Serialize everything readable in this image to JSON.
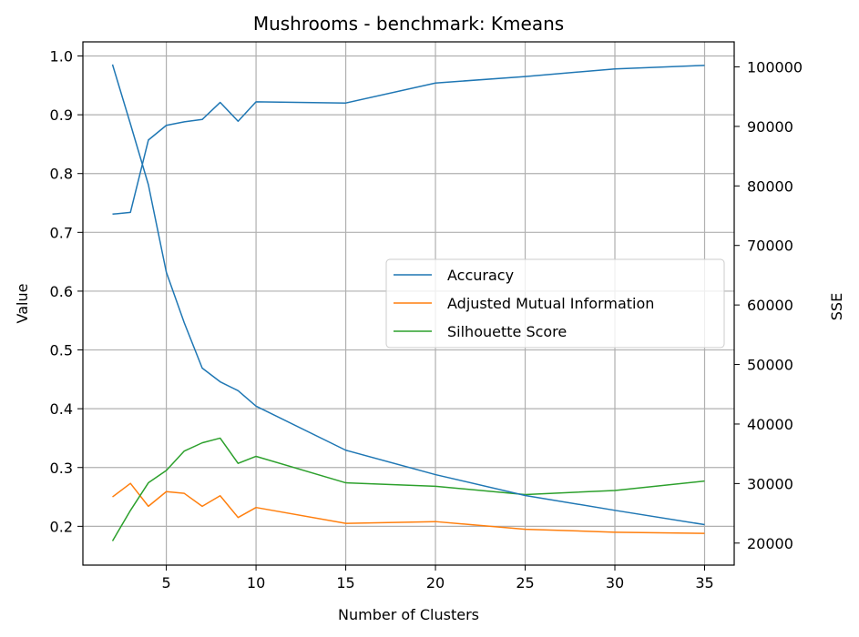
{
  "chart_data": {
    "type": "line",
    "title": "Mushrooms - benchmark: Kmeans",
    "xlabel": "Number of Clusters",
    "ylabel": "Value",
    "y2label": "SSE",
    "x": [
      2,
      3,
      4,
      5,
      6,
      7,
      8,
      9,
      10,
      15,
      20,
      25,
      30,
      35
    ],
    "xlim": [
      0.35,
      36.65
    ],
    "ylim": [
      0.134,
      1.024
    ],
    "y2lim": [
      16300,
      104200
    ],
    "xticks": [
      5,
      10,
      15,
      20,
      25,
      30,
      35
    ],
    "yticks": [
      0.2,
      0.3,
      0.4,
      0.5,
      0.6,
      0.7,
      0.8,
      0.9,
      1.0
    ],
    "y2ticks": [
      20000,
      30000,
      40000,
      50000,
      60000,
      70000,
      80000,
      90000,
      100000
    ],
    "grid": true,
    "legend_position": "center-right",
    "series": [
      {
        "name": "Accuracy",
        "color": "#1f77b4",
        "axis": "left",
        "values": [
          0.731,
          0.734,
          0.857,
          0.882,
          0.888,
          0.892,
          0.921,
          0.889,
          0.922,
          0.92,
          0.954,
          0.965,
          0.978,
          0.984
        ]
      },
      {
        "name": "Adjusted Mutual Information",
        "color": "#ff7f0e",
        "axis": "left",
        "values": [
          0.25,
          0.273,
          0.234,
          0.259,
          0.256,
          0.234,
          0.252,
          0.215,
          0.232,
          0.205,
          0.208,
          0.195,
          0.19,
          0.188
        ]
      },
      {
        "name": "Silhouette Score",
        "color": "#2ca02c",
        "axis": "left",
        "values": [
          0.175,
          0.227,
          0.274,
          0.295,
          0.328,
          0.342,
          0.35,
          0.307,
          0.319,
          0.274,
          0.268,
          0.254,
          0.261,
          0.277
        ]
      },
      {
        "color": "#1f77b4",
        "axis": "right",
        "values": [
          100400,
          90400,
          80200,
          65500,
          57000,
          49400,
          47100,
          45600,
          43000,
          35600,
          31500,
          28000,
          25500,
          23100
        ]
      }
    ]
  }
}
